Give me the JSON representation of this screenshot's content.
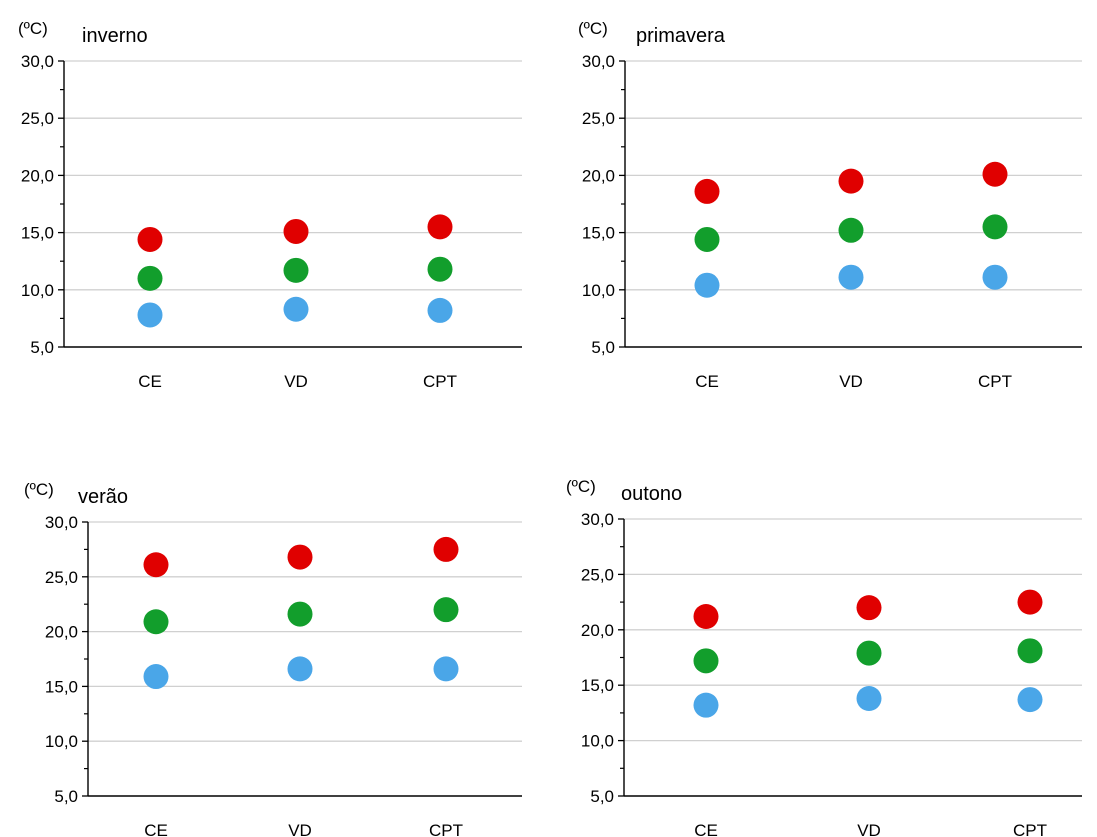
{
  "chart_data": [
    {
      "type": "scatter",
      "title": "inverno",
      "unit": "(ºC)",
      "categories": [
        "CE",
        "VD",
        "CPT"
      ],
      "ylim": [
        5,
        30
      ],
      "yticks": [
        "5,0",
        "10,0",
        "15,0",
        "20,0",
        "25,0",
        "30,0"
      ],
      "grid": true,
      "series": [
        {
          "color": "#e00000",
          "values": [
            14.4,
            15.1,
            15.5
          ]
        },
        {
          "color": "#129e2c",
          "values": [
            11.0,
            11.7,
            11.8
          ]
        },
        {
          "color": "#4aa6e8",
          "values": [
            7.8,
            8.3,
            8.2
          ]
        }
      ]
    },
    {
      "type": "scatter",
      "title": "primavera",
      "unit": "(ºC)",
      "categories": [
        "CE",
        "VD",
        "CPT"
      ],
      "ylim": [
        5,
        30
      ],
      "yticks": [
        "5,0",
        "10,0",
        "15,0",
        "20,0",
        "25,0",
        "30,0"
      ],
      "grid": true,
      "series": [
        {
          "color": "#e00000",
          "values": [
            18.6,
            19.5,
            20.1
          ]
        },
        {
          "color": "#129e2c",
          "values": [
            14.4,
            15.2,
            15.5
          ]
        },
        {
          "color": "#4aa6e8",
          "values": [
            10.4,
            11.1,
            11.1
          ]
        }
      ]
    },
    {
      "type": "scatter",
      "title": "verão",
      "unit": "(ºC)",
      "categories": [
        "CE",
        "VD",
        "CPT"
      ],
      "ylim": [
        5,
        30
      ],
      "yticks": [
        "5,0",
        "10,0",
        "15,0",
        "20,0",
        "25,0",
        "30,0"
      ],
      "grid": true,
      "series": [
        {
          "color": "#e00000",
          "values": [
            26.1,
            26.8,
            27.5
          ]
        },
        {
          "color": "#129e2c",
          "values": [
            20.9,
            21.6,
            22.0
          ]
        },
        {
          "color": "#4aa6e8",
          "values": [
            15.9,
            16.6,
            16.6
          ]
        }
      ]
    },
    {
      "type": "scatter",
      "title": "outono",
      "unit": "(ºC)",
      "categories": [
        "CE",
        "VD",
        "CPT"
      ],
      "ylim": [
        5,
        30
      ],
      "yticks": [
        "5,0",
        "10,0",
        "15,0",
        "20,0",
        "25,0",
        "30,0"
      ],
      "grid": true,
      "series": [
        {
          "color": "#e00000",
          "values": [
            21.2,
            22.0,
            22.5
          ]
        },
        {
          "color": "#129e2c",
          "values": [
            17.2,
            17.9,
            18.1
          ]
        },
        {
          "color": "#4aa6e8",
          "values": [
            13.2,
            13.8,
            13.7
          ]
        }
      ]
    }
  ]
}
